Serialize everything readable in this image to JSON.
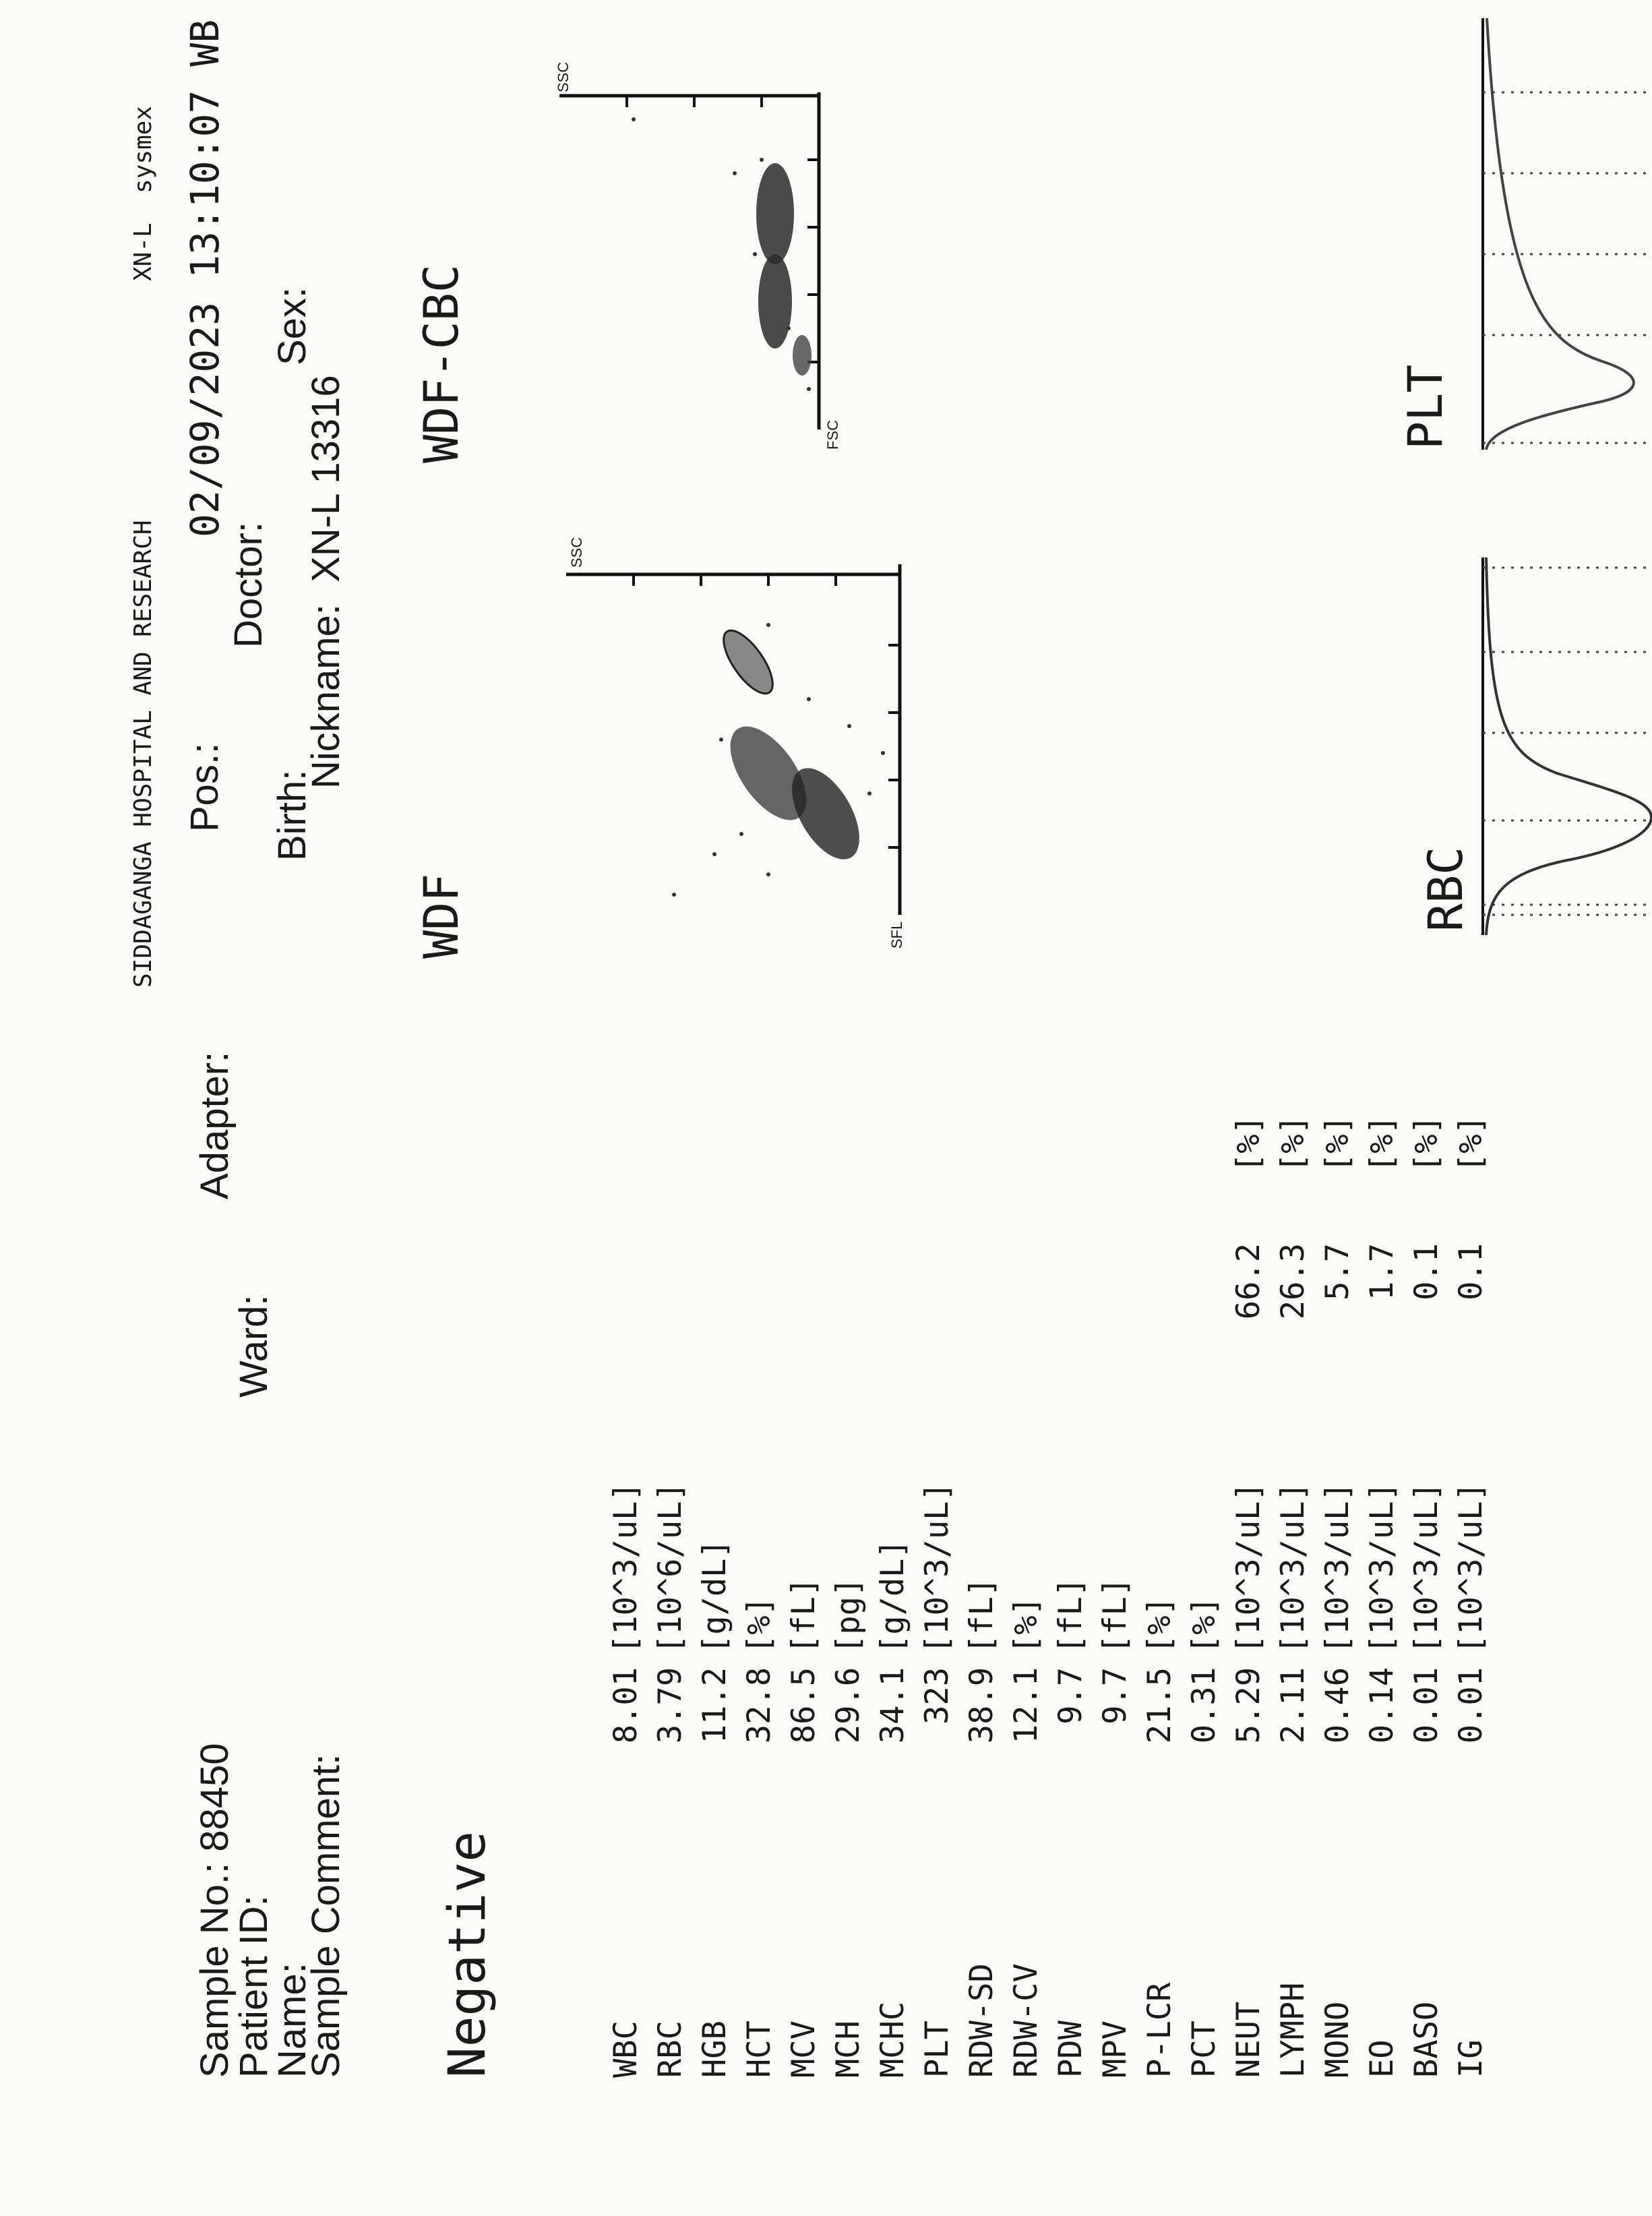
{
  "header": {
    "hospital": "SIDDAGANGA HOSPITAL AND RESEARCH",
    "analyzer": "XN-L  sysmex"
  },
  "sample": {
    "sample_no": "Sample No.: 88450",
    "patient_id": "Patient ID:",
    "name": "Name:",
    "sample_comment": "Sample Comment:",
    "adapter": "Adapter:",
    "ward": "Ward:",
    "pos": "Pos.:",
    "doctor": "Doctor:",
    "birth": "Birth:",
    "sex": "Sex:",
    "nickname": "Nickname:  XN-L 13316",
    "datetime": "02/09/2023 13:10:07 WB"
  },
  "judgment": "Negative",
  "results": [
    {
      "name": "WBC",
      "value": "8.01",
      "unit": "[10^3/uL]"
    },
    {
      "name": "RBC",
      "value": "3.79",
      "unit": "[10^6/uL]"
    },
    {
      "name": "HGB",
      "value": "11.2",
      "unit": "[g/dL]"
    },
    {
      "name": "HCT",
      "value": "32.8",
      "unit": "[%]"
    },
    {
      "name": "MCV",
      "value": "86.5",
      "unit": "[fL]"
    },
    {
      "name": "MCH",
      "value": "29.6",
      "unit": "[pg]"
    },
    {
      "name": "MCHC",
      "value": "34.1",
      "unit": "[g/dL]"
    },
    {
      "name": "PLT",
      "value": "323",
      "unit": "[10^3/uL]"
    },
    {
      "name": "RDW-SD",
      "value": "38.9",
      "unit": "[fL]"
    },
    {
      "name": "RDW-CV",
      "value": "12.1",
      "unit": "[%]"
    },
    {
      "name": "PDW",
      "value": "9.7",
      "unit": "[fL]"
    },
    {
      "name": "MPV",
      "value": "9.7",
      "unit": "[fL]"
    },
    {
      "name": "P-LCR",
      "value": "21.5",
      "unit": "[%]"
    },
    {
      "name": "PCT",
      "value": "0.31",
      "unit": "[%]"
    },
    {
      "name": "NEUT",
      "value": "5.29",
      "unit": "[10^3/uL]",
      "percent": "66.2",
      "percent_unit": "[%]"
    },
    {
      "name": "LYMPH",
      "value": "2.11",
      "unit": "[10^3/uL]",
      "percent": "26.3",
      "percent_unit": "[%]"
    },
    {
      "name": "MONO",
      "value": "0.46",
      "unit": "[10^3/uL]",
      "percent": "5.7",
      "percent_unit": "[%]"
    },
    {
      "name": "EO",
      "value": "0.14",
      "unit": "[10^3/uL]",
      "percent": "1.7",
      "percent_unit": "[%]"
    },
    {
      "name": "BASO",
      "value": "0.01",
      "unit": "[10^3/uL]",
      "percent": "0.1",
      "percent_unit": "[%]"
    },
    {
      "name": "IG",
      "value": "0.01",
      "unit": "[10^3/uL]",
      "percent": "0.1",
      "percent_unit": "[%]"
    }
  ],
  "plots": {
    "wdf": {
      "title": "WDF",
      "y_axis": "SFL",
      "x_axis": "SSC"
    },
    "wdf_cbc": {
      "title": "WDF-CBC",
      "y_axis": "FSC",
      "x_axis": "SSC"
    },
    "rbc": {
      "title": "RBC"
    },
    "plt": {
      "title": "PLT"
    }
  }
}
